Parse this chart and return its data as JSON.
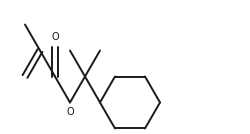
{
  "background_color": "#ffffff",
  "line_color": "#1a1a1a",
  "line_width": 1.4,
  "figsize": [
    2.5,
    1.34
  ],
  "dpi": 100,
  "xlim": [
    0,
    10
  ],
  "ylim": [
    0,
    5.36
  ]
}
